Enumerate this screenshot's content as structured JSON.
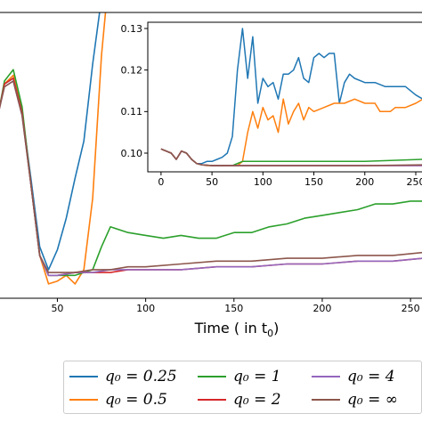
{
  "chart_data": [
    {
      "type": "line",
      "panel": "main",
      "xlabel": "Time ( in t₀)",
      "x_ticks": [
        "50",
        "100",
        "150",
        "200",
        "250"
      ],
      "xlim": [
        17,
        257
      ],
      "ylim": [
        0,
        1
      ],
      "grid": false,
      "series": [
        {
          "name": "q₀ = 0.25",
          "color": "#1f77b4",
          "x": [
            17,
            20,
            25,
            30,
            35,
            40,
            45,
            50,
            55,
            60,
            65,
            70,
            75
          ],
          "y": [
            0.66,
            0.75,
            0.77,
            0.65,
            0.42,
            0.18,
            0.1,
            0.17,
            0.28,
            0.42,
            0.55,
            0.82,
            1.05
          ]
        },
        {
          "name": "q₀ = 0.5",
          "color": "#ff7f0e",
          "x": [
            17,
            20,
            25,
            30,
            35,
            40,
            45,
            50,
            55,
            60,
            65,
            70,
            75,
            78
          ],
          "y": [
            0.66,
            0.75,
            0.78,
            0.65,
            0.4,
            0.15,
            0.05,
            0.06,
            0.08,
            0.05,
            0.1,
            0.35,
            0.85,
            1.05
          ]
        },
        {
          "name": "q₀ = 1",
          "color": "#2ca02c",
          "x": [
            17,
            20,
            25,
            30,
            35,
            40,
            45,
            50,
            55,
            60,
            65,
            70,
            75,
            80,
            90,
            100,
            110,
            120,
            130,
            140,
            150,
            160,
            170,
            180,
            190,
            200,
            210,
            220,
            230,
            240,
            250,
            257
          ],
          "y": [
            0.66,
            0.76,
            0.8,
            0.67,
            0.4,
            0.15,
            0.08,
            0.08,
            0.08,
            0.08,
            0.09,
            0.1,
            0.18,
            0.25,
            0.23,
            0.22,
            0.21,
            0.22,
            0.21,
            0.21,
            0.23,
            0.23,
            0.25,
            0.26,
            0.28,
            0.29,
            0.3,
            0.31,
            0.33,
            0.33,
            0.34,
            0.34
          ]
        },
        {
          "name": "q₀ = 2",
          "color": "#d62728",
          "x": [
            17,
            20,
            25,
            30,
            35,
            40,
            45,
            50,
            60,
            70,
            80,
            90,
            100,
            120,
            140,
            160,
            180,
            200,
            220,
            240,
            257
          ],
          "y": [
            0.66,
            0.75,
            0.77,
            0.65,
            0.4,
            0.15,
            0.08,
            0.08,
            0.09,
            0.09,
            0.09,
            0.1,
            0.1,
            0.1,
            0.11,
            0.11,
            0.12,
            0.12,
            0.13,
            0.13,
            0.14
          ]
        },
        {
          "name": "q₀ = 4",
          "color": "#9467bd",
          "x": [
            17,
            20,
            25,
            30,
            35,
            40,
            45,
            50,
            60,
            70,
            80,
            90,
            100,
            120,
            140,
            160,
            180,
            200,
            220,
            240,
            257
          ],
          "y": [
            0.66,
            0.74,
            0.76,
            0.64,
            0.4,
            0.15,
            0.08,
            0.08,
            0.09,
            0.09,
            0.1,
            0.1,
            0.1,
            0.1,
            0.11,
            0.11,
            0.12,
            0.12,
            0.13,
            0.13,
            0.14
          ]
        },
        {
          "name": "q₀ = ∞",
          "color": "#8c564b",
          "x": [
            17,
            20,
            25,
            30,
            35,
            40,
            45,
            50,
            60,
            70,
            80,
            90,
            100,
            120,
            140,
            160,
            180,
            200,
            220,
            240,
            257
          ],
          "y": [
            0.66,
            0.74,
            0.76,
            0.64,
            0.4,
            0.15,
            0.09,
            0.09,
            0.09,
            0.1,
            0.1,
            0.11,
            0.11,
            0.12,
            0.13,
            0.13,
            0.14,
            0.14,
            0.15,
            0.15,
            0.16
          ]
        }
      ]
    },
    {
      "type": "line",
      "panel": "inset",
      "x_ticks": [
        "0",
        "50",
        "100",
        "150",
        "200",
        "250"
      ],
      "y_ticks": [
        "0.10",
        "0.11",
        "0.12",
        "0.13"
      ],
      "xlim": [
        -13,
        257
      ],
      "ylim": [
        0.0955,
        0.1315
      ],
      "grid": false,
      "series": [
        {
          "color": "#1f77b4",
          "x": [
            0,
            10,
            15,
            20,
            25,
            30,
            35,
            40,
            45,
            50,
            55,
            60,
            65,
            70,
            75,
            80,
            85,
            90,
            95,
            100,
            105,
            110,
            115,
            120,
            125,
            130,
            135,
            140,
            145,
            150,
            155,
            160,
            165,
            170,
            175,
            180,
            185,
            190,
            200,
            210,
            220,
            230,
            240,
            250,
            257
          ],
          "y": [
            0.101,
            0.1,
            0.0985,
            0.1005,
            0.1,
            0.0985,
            0.0975,
            0.0975,
            0.098,
            0.098,
            0.0985,
            0.099,
            0.1,
            0.104,
            0.12,
            0.13,
            0.118,
            0.128,
            0.112,
            0.118,
            0.116,
            0.117,
            0.113,
            0.119,
            0.119,
            0.12,
            0.123,
            0.118,
            0.117,
            0.123,
            0.124,
            0.123,
            0.124,
            0.124,
            0.112,
            0.117,
            0.119,
            0.118,
            0.117,
            0.117,
            0.116,
            0.116,
            0.116,
            0.114,
            0.113
          ]
        },
        {
          "color": "#ff7f0e",
          "x": [
            0,
            10,
            15,
            20,
            25,
            30,
            35,
            40,
            45,
            50,
            55,
            60,
            65,
            70,
            75,
            80,
            85,
            90,
            95,
            100,
            105,
            110,
            115,
            120,
            125,
            130,
            135,
            140,
            145,
            150,
            160,
            170,
            180,
            190,
            200,
            210,
            215,
            220,
            225,
            230,
            240,
            250,
            257
          ],
          "y": [
            0.101,
            0.1,
            0.0985,
            0.1005,
            0.1,
            0.0985,
            0.0975,
            0.0972,
            0.097,
            0.097,
            0.097,
            0.097,
            0.097,
            0.097,
            0.097,
            0.098,
            0.105,
            0.11,
            0.106,
            0.111,
            0.108,
            0.109,
            0.105,
            0.113,
            0.107,
            0.11,
            0.112,
            0.108,
            0.111,
            0.11,
            0.111,
            0.112,
            0.112,
            0.113,
            0.112,
            0.112,
            0.11,
            0.11,
            0.11,
            0.111,
            0.111,
            0.112,
            0.113
          ]
        },
        {
          "color": "#2ca02c",
          "x": [
            0,
            10,
            15,
            20,
            25,
            30,
            35,
            40,
            50,
            60,
            70,
            80,
            100,
            150,
            200,
            257
          ],
          "y": [
            0.101,
            0.1,
            0.0985,
            0.1005,
            0.1,
            0.0985,
            0.0975,
            0.0972,
            0.097,
            0.097,
            0.097,
            0.098,
            0.098,
            0.098,
            0.098,
            0.0985
          ]
        },
        {
          "color": "#d62728",
          "x": [
            0,
            10,
            15,
            20,
            25,
            30,
            35,
            40,
            50,
            60,
            100,
            150,
            200,
            257
          ],
          "y": [
            0.101,
            0.1,
            0.0985,
            0.1005,
            0.1,
            0.0985,
            0.0975,
            0.0972,
            0.097,
            0.097,
            0.097,
            0.097,
            0.097,
            0.097
          ]
        },
        {
          "color": "#9467bd",
          "x": [
            0,
            10,
            15,
            20,
            25,
            30,
            35,
            40,
            50,
            60,
            100,
            150,
            200,
            257
          ],
          "y": [
            0.101,
            0.1,
            0.0985,
            0.1005,
            0.1,
            0.0985,
            0.0975,
            0.0972,
            0.097,
            0.097,
            0.097,
            0.097,
            0.097,
            0.097
          ]
        },
        {
          "color": "#8c564b",
          "x": [
            0,
            10,
            15,
            20,
            25,
            30,
            35,
            40,
            50,
            60,
            100,
            150,
            200,
            257
          ],
          "y": [
            0.101,
            0.1,
            0.0985,
            0.1005,
            0.1,
            0.0985,
            0.0975,
            0.0972,
            0.097,
            0.097,
            0.097,
            0.097,
            0.097,
            0.0972
          ]
        }
      ]
    }
  ],
  "legend": {
    "items": [
      {
        "label": "q₀ = 0.25",
        "color": "#1f77b4"
      },
      {
        "label": "q₀ = 0.5",
        "color": "#ff7f0e"
      },
      {
        "label": "q₀ = 1",
        "color": "#2ca02c"
      },
      {
        "label": "q₀ = 2",
        "color": "#d62728"
      },
      {
        "label": "q₀ = 4",
        "color": "#9467bd"
      },
      {
        "label": "q₀ = ∞",
        "color": "#8c564b"
      }
    ]
  }
}
